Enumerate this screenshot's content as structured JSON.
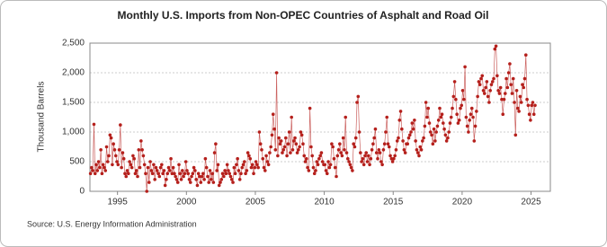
{
  "chart_data": {
    "type": "line",
    "title": "Monthly U.S. Imports from Non-OPEC Countries of Asphalt and Road Oil",
    "y_label": "Thousand Barrels",
    "source": "Source: U.S. Energy Information Administration",
    "xlim": [
      1993,
      2026.4
    ],
    "xticks": [
      1995,
      2000,
      2005,
      2010,
      2015,
      2020,
      2025
    ],
    "ylim": [
      0,
      2500
    ],
    "yticks": [
      0,
      500,
      {
        "value": 1000,
        "label": "1,000"
      },
      {
        "value": 1500,
        "label": "1,500"
      },
      {
        "value": 2000,
        "label": "2,000"
      },
      {
        "value": 2500,
        "label": "2,500"
      }
    ],
    "grid": true,
    "x": [
      "1993-01",
      "1993-02",
      "1993-03",
      "1993-04",
      "1993-05",
      "1993-06",
      "1993-07",
      "1993-08",
      "1993-09",
      "1993-10",
      "1993-11",
      "1993-12",
      "1994-01",
      "1994-02",
      "1994-03",
      "1994-04",
      "1994-05",
      "1994-06",
      "1994-07",
      "1994-08",
      "1994-09",
      "1994-10",
      "1994-11",
      "1994-12",
      "1995-01",
      "1995-02",
      "1995-03",
      "1995-04",
      "1995-05",
      "1995-06",
      "1995-07",
      "1995-08",
      "1995-09",
      "1995-10",
      "1995-11",
      "1995-12",
      "1996-01",
      "1996-02",
      "1996-03",
      "1996-04",
      "1996-05",
      "1996-06",
      "1996-07",
      "1996-08",
      "1996-09",
      "1996-10",
      "1996-11",
      "1996-12",
      "1997-01",
      "1997-02",
      "1997-03",
      "1997-04",
      "1997-05",
      "1997-06",
      "1997-07",
      "1997-08",
      "1997-09",
      "1997-10",
      "1997-11",
      "1997-12",
      "1998-01",
      "1998-02",
      "1998-03",
      "1998-04",
      "1998-05",
      "1998-06",
      "1998-07",
      "1998-08",
      "1998-09",
      "1998-10",
      "1998-11",
      "1998-12",
      "1999-01",
      "1999-02",
      "1999-03",
      "1999-04",
      "1999-05",
      "1999-06",
      "1999-07",
      "1999-08",
      "1999-09",
      "1999-10",
      "1999-11",
      "1999-12",
      "2000-01",
      "2000-02",
      "2000-03",
      "2000-04",
      "2000-05",
      "2000-06",
      "2000-07",
      "2000-08",
      "2000-09",
      "2000-10",
      "2000-11",
      "2000-12",
      "2001-01",
      "2001-02",
      "2001-03",
      "2001-04",
      "2001-05",
      "2001-06",
      "2001-07",
      "2001-08",
      "2001-09",
      "2001-10",
      "2001-11",
      "2001-12",
      "2002-01",
      "2002-02",
      "2002-03",
      "2002-04",
      "2002-05",
      "2002-06",
      "2002-07",
      "2002-08",
      "2002-09",
      "2002-10",
      "2002-11",
      "2002-12",
      "2003-01",
      "2003-02",
      "2003-03",
      "2003-04",
      "2003-05",
      "2003-06",
      "2003-07",
      "2003-08",
      "2003-09",
      "2003-10",
      "2003-11",
      "2003-12",
      "2004-01",
      "2004-02",
      "2004-03",
      "2004-04",
      "2004-05",
      "2004-06",
      "2004-07",
      "2004-08",
      "2004-09",
      "2004-10",
      "2004-11",
      "2004-12",
      "2005-01",
      "2005-02",
      "2005-03",
      "2005-04",
      "2005-05",
      "2005-06",
      "2005-07",
      "2005-08",
      "2005-09",
      "2005-10",
      "2005-11",
      "2005-12",
      "2006-01",
      "2006-02",
      "2006-03",
      "2006-04",
      "2006-05",
      "2006-06",
      "2006-07",
      "2006-08",
      "2006-09",
      "2006-10",
      "2006-11",
      "2006-12",
      "2007-01",
      "2007-02",
      "2007-03",
      "2007-04",
      "2007-05",
      "2007-06",
      "2007-07",
      "2007-08",
      "2007-09",
      "2007-10",
      "2007-11",
      "2007-12",
      "2008-01",
      "2008-02",
      "2008-03",
      "2008-04",
      "2008-05",
      "2008-06",
      "2008-07",
      "2008-08",
      "2008-09",
      "2008-10",
      "2008-11",
      "2008-12",
      "2009-01",
      "2009-02",
      "2009-03",
      "2009-04",
      "2009-05",
      "2009-06",
      "2009-07",
      "2009-08",
      "2009-09",
      "2009-10",
      "2009-11",
      "2009-12",
      "2010-01",
      "2010-02",
      "2010-03",
      "2010-04",
      "2010-05",
      "2010-06",
      "2010-07",
      "2010-08",
      "2010-09",
      "2010-10",
      "2010-11",
      "2010-12",
      "2011-01",
      "2011-02",
      "2011-03",
      "2011-04",
      "2011-05",
      "2011-06",
      "2011-07",
      "2011-08",
      "2011-09",
      "2011-10",
      "2011-11",
      "2011-12",
      "2012-01",
      "2012-02",
      "2012-03",
      "2012-04",
      "2012-05",
      "2012-06",
      "2012-07",
      "2012-08",
      "2012-09",
      "2012-10",
      "2012-11",
      "2012-12",
      "2013-01",
      "2013-02",
      "2013-03",
      "2013-04",
      "2013-05",
      "2013-06",
      "2013-07",
      "2013-08",
      "2013-09",
      "2013-10",
      "2013-11",
      "2013-12",
      "2014-01",
      "2014-02",
      "2014-03",
      "2014-04",
      "2014-05",
      "2014-06",
      "2014-07",
      "2014-08",
      "2014-09",
      "2014-10",
      "2014-11",
      "2014-12",
      "2015-01",
      "2015-02",
      "2015-03",
      "2015-04",
      "2015-05",
      "2015-06",
      "2015-07",
      "2015-08",
      "2015-09",
      "2015-10",
      "2015-11",
      "2015-12",
      "2016-01",
      "2016-02",
      "2016-03",
      "2016-04",
      "2016-05",
      "2016-06",
      "2016-07",
      "2016-08",
      "2016-09",
      "2016-10",
      "2016-11",
      "2016-12",
      "2017-01",
      "2017-02",
      "2017-03",
      "2017-04",
      "2017-05",
      "2017-06",
      "2017-07",
      "2017-08",
      "2017-09",
      "2017-10",
      "2017-11",
      "2017-12",
      "2018-01",
      "2018-02",
      "2018-03",
      "2018-04",
      "2018-05",
      "2018-06",
      "2018-07",
      "2018-08",
      "2018-09",
      "2018-10",
      "2018-11",
      "2018-12",
      "2019-01",
      "2019-02",
      "2019-03",
      "2019-04",
      "2019-05",
      "2019-06",
      "2019-07",
      "2019-08",
      "2019-09",
      "2019-10",
      "2019-11",
      "2019-12",
      "2020-01",
      "2020-02",
      "2020-03",
      "2020-04",
      "2020-05",
      "2020-06",
      "2020-07",
      "2020-08",
      "2020-09",
      "2020-10",
      "2020-11",
      "2020-12",
      "2021-01",
      "2021-02",
      "2021-03",
      "2021-04",
      "2021-05",
      "2021-06",
      "2021-07",
      "2021-08",
      "2021-09",
      "2021-10",
      "2021-11",
      "2021-12",
      "2022-01",
      "2022-02",
      "2022-03",
      "2022-04",
      "2022-05",
      "2022-06",
      "2022-07",
      "2022-08",
      "2022-09",
      "2022-10",
      "2022-11",
      "2022-12",
      "2023-01",
      "2023-02",
      "2023-03",
      "2023-04",
      "2023-05",
      "2023-06",
      "2023-07",
      "2023-08",
      "2023-09",
      "2023-10",
      "2023-11",
      "2023-12",
      "2024-01",
      "2024-02",
      "2024-03",
      "2024-04",
      "2024-05",
      "2024-06",
      "2024-07",
      "2024-08",
      "2024-09",
      "2024-10",
      "2024-11",
      "2024-12",
      "2025-01",
      "2025-02",
      "2025-03",
      "2025-04"
    ],
    "series": [
      {
        "color": "#b5201c",
        "values": [
          300,
          400,
          350,
          1130,
          300,
          450,
          350,
          500,
          400,
          700,
          300,
          450,
          400,
          350,
          750,
          500,
          600,
          950,
          900,
          450,
          800,
          700,
          600,
          500,
          450,
          700,
          1120,
          400,
          650,
          550,
          300,
          250,
          350,
          300,
          500,
          450,
          400,
          600,
          550,
          300,
          350,
          250,
          700,
          400,
          850,
          700,
          600,
          450,
          300,
          0,
          400,
          150,
          500,
          350,
          300,
          450,
          200,
          400,
          350,
          300,
          250,
          400,
          450,
          300,
          350,
          100,
          200,
          300,
          400,
          350,
          550,
          300,
          400,
          300,
          250,
          200,
          150,
          450,
          300,
          200,
          350,
          250,
          300,
          500,
          350,
          300,
          200,
          150,
          250,
          300,
          400,
          350,
          200,
          100,
          300,
          250,
          150,
          250,
          300,
          200,
          550,
          400,
          250,
          150,
          350,
          200,
          300,
          150,
          650,
          800,
          350,
          450,
          100,
          150,
          200,
          300,
          250,
          350,
          300,
          450,
          350,
          300,
          250,
          200,
          150,
          400,
          300,
          450,
          550,
          350,
          200,
          300,
          400,
          450,
          500,
          300,
          350,
          650,
          600,
          550,
          400,
          450,
          300,
          400,
          500,
          450,
          400,
          1000,
          800,
          700,
          550,
          400,
          350,
          600,
          500,
          450,
          650,
          750,
          950,
          1300,
          1050,
          700,
          2000,
          600,
          900,
          800,
          850,
          650,
          700,
          750,
          900,
          600,
          800,
          1000,
          650,
          1250,
          700,
          850,
          900,
          800,
          650,
          700,
          750,
          1000,
          950,
          800,
          600,
          500,
          550,
          400,
          350,
          1400,
          750,
          600,
          400,
          300,
          350,
          500,
          450,
          550,
          600,
          650,
          500,
          450,
          450,
          350,
          300,
          500,
          400,
          450,
          800,
          750,
          550,
          400,
          250,
          600,
          700,
          800,
          650,
          600,
          900,
          700,
          1250,
          650,
          550,
          500,
          450,
          400,
          350,
          800,
          750,
          900,
          1500,
          1600,
          1000,
          650,
          500,
          550,
          450,
          600,
          650,
          500,
          600,
          450,
          550,
          700,
          800,
          900,
          1050,
          650,
          550,
          700,
          650,
          500,
          450,
          700,
          800,
          1000,
          1250,
          800,
          750,
          600,
          550,
          500,
          550,
          600,
          700,
          850,
          900,
          1200,
          1350,
          1050,
          850,
          700,
          650,
          800,
          800,
          900,
          950,
          1000,
          1150,
          1050,
          1200,
          850,
          700,
          650,
          600,
          750,
          700,
          850,
          900,
          1100,
          1500,
          1250,
          1400,
          1150,
          1000,
          950,
          800,
          1050,
          850,
          1000,
          1100,
          1200,
          1400,
          1250,
          1300,
          1150,
          1050,
          950,
          850,
          900,
          1000,
          1150,
          1250,
          1400,
          1600,
          1850,
          1550,
          1300,
          1150,
          1200,
          1400,
          1450,
          1700,
          1550,
          2100,
          1250,
          1100,
          1000,
          1200,
          1300,
          1400,
          1250,
          850,
          1100,
          1350,
          1600,
          1850,
          1800,
          1900,
          1950,
          1700,
          1650,
          1750,
          1850,
          1600,
          1500,
          1700,
          1800,
          1850,
          1900,
          2400,
          2450,
          1950,
          1700,
          1650,
          1750,
          1550,
          1300,
          1550,
          1650,
          1900,
          1750,
          2000,
          2150,
          1800,
          1650,
          1900,
          1500,
          950,
          1700,
          1400,
          1350,
          1600,
          1500,
          1800,
          1750,
          1900,
          2300,
          1550,
          1450,
          1300,
          1200,
          1450,
          1500,
          1300,
          1450
        ]
      }
    ]
  }
}
